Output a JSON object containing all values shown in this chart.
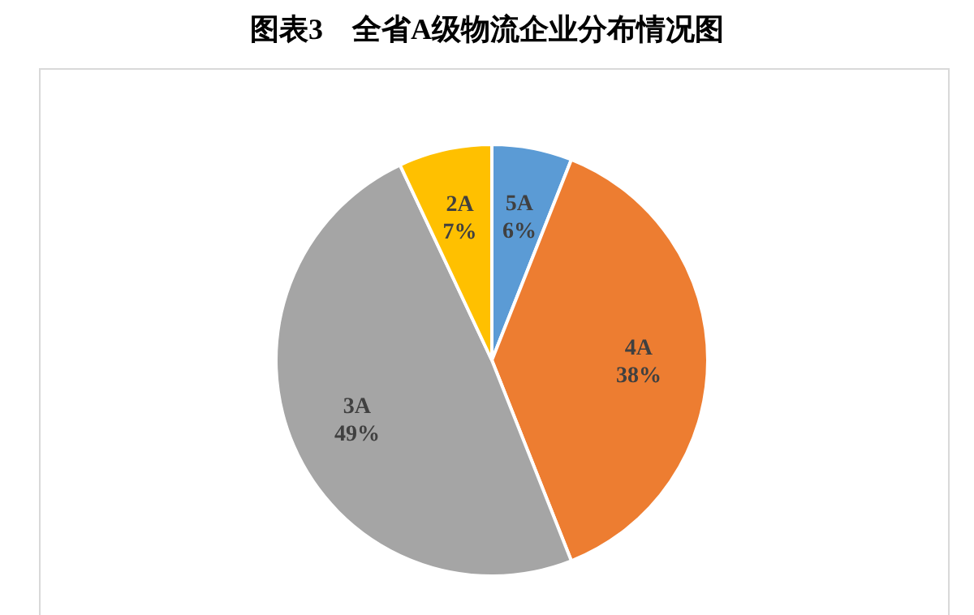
{
  "chart_data": {
    "type": "pie",
    "title": "图表3　全省A级物流企业分布情况图",
    "categories": [
      "5A",
      "4A",
      "3A",
      "2A"
    ],
    "values": [
      6,
      38,
      49,
      7
    ],
    "colors": [
      "#5b9bd5",
      "#ed7d31",
      "#a5a5a5",
      "#ffc000"
    ],
    "value_labels": [
      "6%",
      "38%",
      "49%",
      "7%"
    ]
  }
}
